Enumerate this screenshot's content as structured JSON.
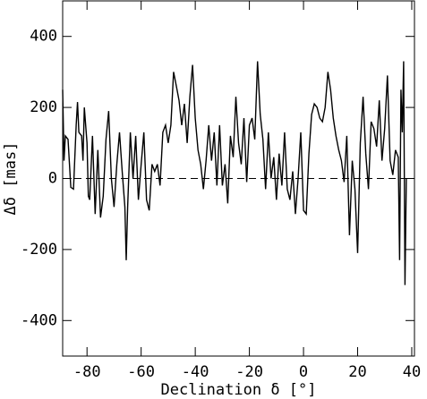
{
  "chart_data": {
    "type": "line",
    "x_label": "Declination δ [°]",
    "y_label": "Δδ [mas]",
    "x": [
      -89,
      -88.5,
      -88,
      -87,
      -86,
      -85,
      -84,
      -83.5,
      -83,
      -82,
      -81.5,
      -81,
      -80,
      -79.5,
      -79,
      -78,
      -77,
      -76,
      -75,
      -74,
      -73,
      -72,
      -71,
      -70,
      -69,
      -68,
      -67,
      -66,
      -65.5,
      -65,
      -64,
      -63,
      -62,
      -61,
      -60,
      -59,
      -58,
      -57,
      -56,
      -55,
      -54,
      -53,
      -52,
      -51,
      -50,
      -49,
      -48,
      -47,
      -46,
      -45,
      -44,
      -43,
      -42,
      -41,
      -40,
      -39,
      -38,
      -37,
      -36,
      -35,
      -34,
      -33,
      -32,
      -31,
      -30,
      -29,
      -28,
      -27,
      -26,
      -25,
      -24,
      -23,
      -22,
      -21,
      -20,
      -19,
      -18,
      -17,
      -16,
      -15,
      -14,
      -13,
      -12,
      -11,
      -10,
      -9,
      -8,
      -7,
      -6,
      -5,
      -4,
      -3,
      -2,
      -1,
      0,
      1,
      2,
      3,
      4,
      5,
      6,
      7,
      8,
      9,
      10,
      11,
      12,
      13,
      14,
      15,
      16,
      17,
      18,
      19,
      20,
      21,
      22,
      23,
      24,
      25,
      26,
      27,
      28,
      29,
      30,
      31,
      32,
      33,
      34,
      35,
      35.5,
      36,
      36.5,
      37,
      37.5,
      38
    ],
    "series": [
      {
        "color": "#000000",
        "values": [
          250,
          50,
          120,
          110,
          -25,
          -30,
          150,
          215,
          130,
          120,
          50,
          200,
          100,
          -50,
          -60,
          120,
          -100,
          80,
          -110,
          -50,
          110,
          190,
          0,
          -80,
          40,
          130,
          20,
          -80,
          -230,
          -80,
          130,
          0,
          120,
          -60,
          40,
          130,
          -60,
          -90,
          40,
          20,
          40,
          -20,
          130,
          150,
          100,
          150,
          300,
          260,
          220,
          150,
          210,
          100,
          230,
          320,
          170,
          80,
          40,
          -30,
          50,
          150,
          50,
          130,
          -20,
          150,
          -20,
          40,
          -70,
          120,
          60,
          230,
          100,
          40,
          170,
          -10,
          150,
          170,
          110,
          330,
          180,
          110,
          -30,
          130,
          0,
          60,
          -60,
          70,
          -20,
          130,
          -30,
          -60,
          20,
          -100,
          0,
          130,
          -90,
          -100,
          70,
          180,
          210,
          200,
          170,
          160,
          200,
          300,
          250,
          170,
          120,
          80,
          50,
          -10,
          120,
          -160,
          50,
          -30,
          -210,
          100,
          230,
          70,
          -30,
          160,
          140,
          90,
          220,
          50,
          140,
          290,
          50,
          10,
          80,
          60,
          -230,
          250,
          130,
          330,
          -300,
          0
        ]
      }
    ],
    "xlim": [
      -89,
      41
    ],
    "ylim": [
      -500,
      500
    ],
    "xticks": [
      -80,
      -60,
      -40,
      -20,
      0,
      20,
      40
    ],
    "yticks": [
      -400,
      -200,
      0,
      200,
      400
    ],
    "hline": 0
  }
}
